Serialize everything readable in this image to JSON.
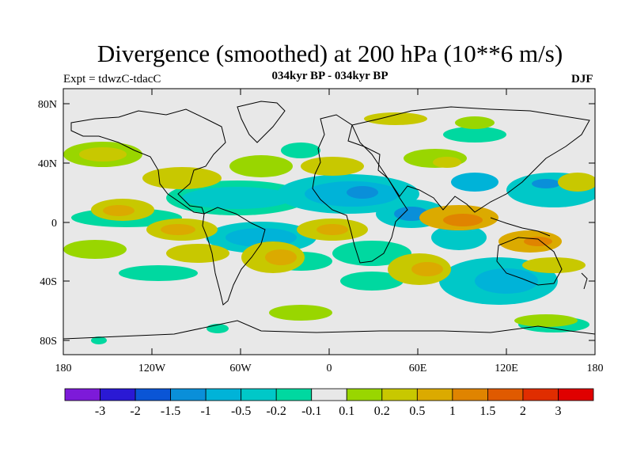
{
  "title": "Divergence (smoothed) at 200 hPa (10**6 m/s)",
  "subtitle": "034kyr BP - 034kyr BP",
  "experiment": "Expt = tdwzC-tdacC",
  "season": "DJF",
  "map": {
    "lon_ticks": [
      "180",
      "120W",
      "60W",
      "0",
      "60E",
      "120E",
      "180"
    ],
    "lat_ticks": [
      "80N",
      "40N",
      "0",
      "40S",
      "80S"
    ],
    "ocean_fill": "#e8e8e8"
  },
  "colorbar": {
    "colors": [
      "#7d1ad9",
      "#2a19d4",
      "#0a55d6",
      "#0a8fd9",
      "#00b3d8",
      "#00c8c8",
      "#00d8a0",
      "#e8e8e8",
      "#99d600",
      "#c8c800",
      "#dbaa00",
      "#e08400",
      "#e05a00",
      "#e02d00",
      "#e00000"
    ],
    "labels": [
      "-3",
      "-2",
      "-1.5",
      "-1",
      "-0.5",
      "-0.2",
      "-0.1",
      "0.1",
      "0.2",
      "0.5",
      "1",
      "1.5",
      "2",
      "3"
    ]
  }
}
